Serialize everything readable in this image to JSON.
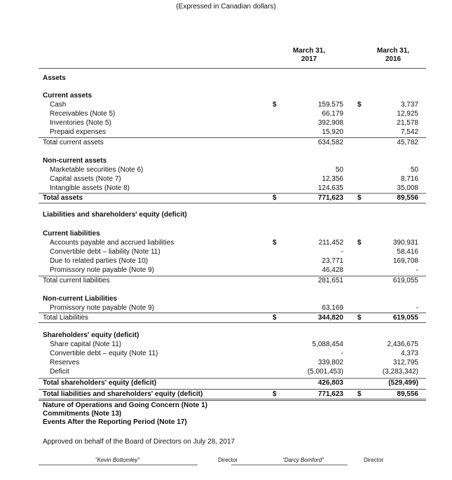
{
  "subtitle": "(Expressed in Canadian dollars)",
  "columns": [
    {
      "line1": "March 31,",
      "line2": "2017"
    },
    {
      "line1": "March 31,",
      "line2": "2016"
    }
  ],
  "currency_symbol": "$",
  "rows": [
    {
      "label": "Assets",
      "kind": "section"
    },
    {
      "label": "Current assets",
      "kind": "heading"
    },
    {
      "label": "Cash",
      "kind": "item",
      "v2017": "159,575",
      "v2016": "3,737",
      "dollar": true
    },
    {
      "label": "Receivables (Note 5)",
      "kind": "item",
      "v2017": "66,179",
      "v2016": "12,925"
    },
    {
      "label": "Inventories (Note 5)",
      "kind": "item",
      "v2017": "392,908",
      "v2016": "21,578"
    },
    {
      "label": "Prepaid expenses",
      "kind": "item",
      "v2017": "15,920",
      "v2016": "7,542"
    },
    {
      "label": "Total current assets",
      "kind": "subtotal",
      "v2017": "634,582",
      "v2016": "45,782"
    },
    {
      "label": "Non-current assets",
      "kind": "heading"
    },
    {
      "label": "Marketable securities (Note 6)",
      "kind": "item",
      "v2017": "50",
      "v2016": "50"
    },
    {
      "label": "Capital assets (Note 7)",
      "kind": "item",
      "v2017": "12,356",
      "v2016": "8,716"
    },
    {
      "label": "Intangible assets (Note 8)",
      "kind": "item",
      "v2017": "124,635",
      "v2016": "35,008"
    },
    {
      "label": "Total assets",
      "kind": "total",
      "v2017": "771,623",
      "v2016": "89,556",
      "dollar": true
    },
    {
      "label": "Liabilities and shareholders' equity (deficit)",
      "kind": "section"
    },
    {
      "label": "Current liabilities",
      "kind": "heading"
    },
    {
      "label": "Accounts payable and accrued liabilities",
      "kind": "item",
      "v2017": "211,452",
      "v2016": "390,931",
      "dollar": true
    },
    {
      "label": "Convertible debt – liability (Note 11)",
      "kind": "item",
      "v2017": "-",
      "v2016": "58,416"
    },
    {
      "label": "Due to related parties (Note 10)",
      "kind": "item",
      "v2017": "23,771",
      "v2016": "169,708"
    },
    {
      "label": "Promissory note payable (Note 9)",
      "kind": "item",
      "v2017": "46,428",
      "v2016": "-"
    },
    {
      "label": "Total current liabilities",
      "kind": "subtotal",
      "v2017": "281,651",
      "v2016": "619,055"
    },
    {
      "label": "Non-current Liabilities",
      "kind": "heading"
    },
    {
      "label": "Promissory note payable (Note 9)",
      "kind": "item",
      "v2017": "63,169",
      "v2016": "-"
    },
    {
      "label": "Total Liabilities",
      "kind": "subtotal",
      "v2017": "344,820",
      "v2016": "619,055",
      "dollar": true,
      "bold_values": true
    },
    {
      "label": "Shareholders' equity (deficit)",
      "kind": "heading"
    },
    {
      "label": "Share capital (Note 11)",
      "kind": "item",
      "v2017": "5,088,454",
      "v2016": "2,436,675"
    },
    {
      "label": "Convertible debt – equity (Note 11)",
      "kind": "item",
      "v2017": "-",
      "v2016": "4,373"
    },
    {
      "label": "Reserves",
      "kind": "item",
      "v2017": "339,802",
      "v2016": "312,795"
    },
    {
      "label": "Deficit",
      "kind": "item",
      "v2017": "(5,001,453)",
      "v2016": "(3,283,342)"
    },
    {
      "label": "Total shareholders' equity (deficit)",
      "kind": "total",
      "v2017": "426,803",
      "v2016": "(529,499)"
    },
    {
      "label": "Total liabilities and shareholders' equity (deficit)",
      "kind": "total",
      "v2017": "771,623",
      "v2016": "89,556",
      "dollar": true
    },
    {
      "label": "Nature of Operations and Going Concern (Note 1)",
      "kind": "note"
    },
    {
      "label": "Commitments (Note 13)",
      "kind": "note"
    },
    {
      "label": "Events After the Reporting Period (Note 17)",
      "kind": "note"
    }
  ],
  "approval": "Approved on behalf of the Board of Directors on July 28, 2017",
  "signatures": [
    {
      "name": "\"Kevin Bottomley\"",
      "title": "Director"
    },
    {
      "name": "\"Darcy Bomford\"",
      "title": "Director"
    }
  ]
}
